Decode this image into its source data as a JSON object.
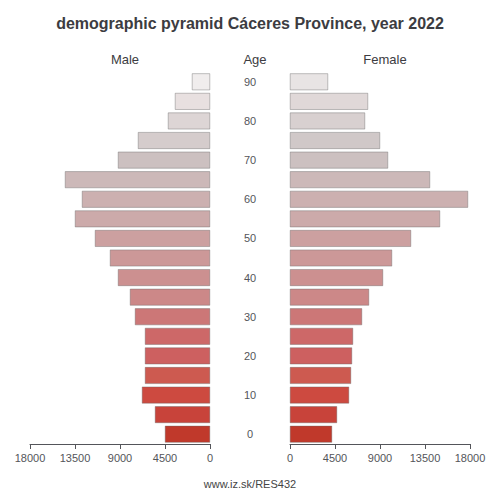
{
  "chart_data": {
    "type": "bar",
    "orientation": "horizontal",
    "title": "demographic pyramid Cáceres Province, year 2022",
    "ylabel": "Age",
    "categories": [
      0,
      null,
      10,
      null,
      20,
      null,
      30,
      null,
      40,
      null,
      50,
      null,
      60,
      null,
      70,
      null,
      80,
      null,
      90
    ],
    "series": [
      {
        "name": "Male",
        "colors": [
          "#c0392b",
          "#c8433a",
          "#cd4a40",
          "#cd5a50",
          "#cd6060",
          "#cd6868",
          "#cc7777",
          "#cc8888",
          "#cc9090",
          "#cc9898",
          "#cca0a0",
          "#ccaaaa",
          "#ccb0b0",
          "#ccb8b8",
          "#ccc0c0",
          "#d5cccc",
          "#ddd5d5",
          "#e8e0e0",
          "#f0eded"
        ],
        "values": [
          4500,
          5500,
          6800,
          6500,
          6500,
          6500,
          7500,
          8000,
          9200,
          10000,
          11500,
          13500,
          12800,
          14500,
          9200,
          7200,
          4200,
          3500,
          1800
        ]
      },
      {
        "name": "Female",
        "colors": [
          "#c0392b",
          "#c8433a",
          "#cd4a40",
          "#cd5a50",
          "#cd6060",
          "#cd6868",
          "#cc7777",
          "#cc8888",
          "#cc9090",
          "#cc9898",
          "#cca0a0",
          "#ccaaaa",
          "#ccb0b0",
          "#ccb8b8",
          "#ccc0c0",
          "#d0c8c8",
          "#d8d0d0",
          "#e0d8d8",
          "#e8e4e4"
        ],
        "values": [
          4200,
          4700,
          5900,
          6100,
          6200,
          6300,
          7200,
          7900,
          9300,
          10200,
          12100,
          15000,
          17800,
          14000,
          9800,
          9000,
          7500,
          7800,
          3800
        ]
      }
    ],
    "xlim": [
      0,
      18000
    ],
    "xticks": [
      0,
      4500,
      9000,
      13500,
      18000
    ],
    "grid": false,
    "annotations": [
      "www.iz.sk/RES432"
    ]
  }
}
